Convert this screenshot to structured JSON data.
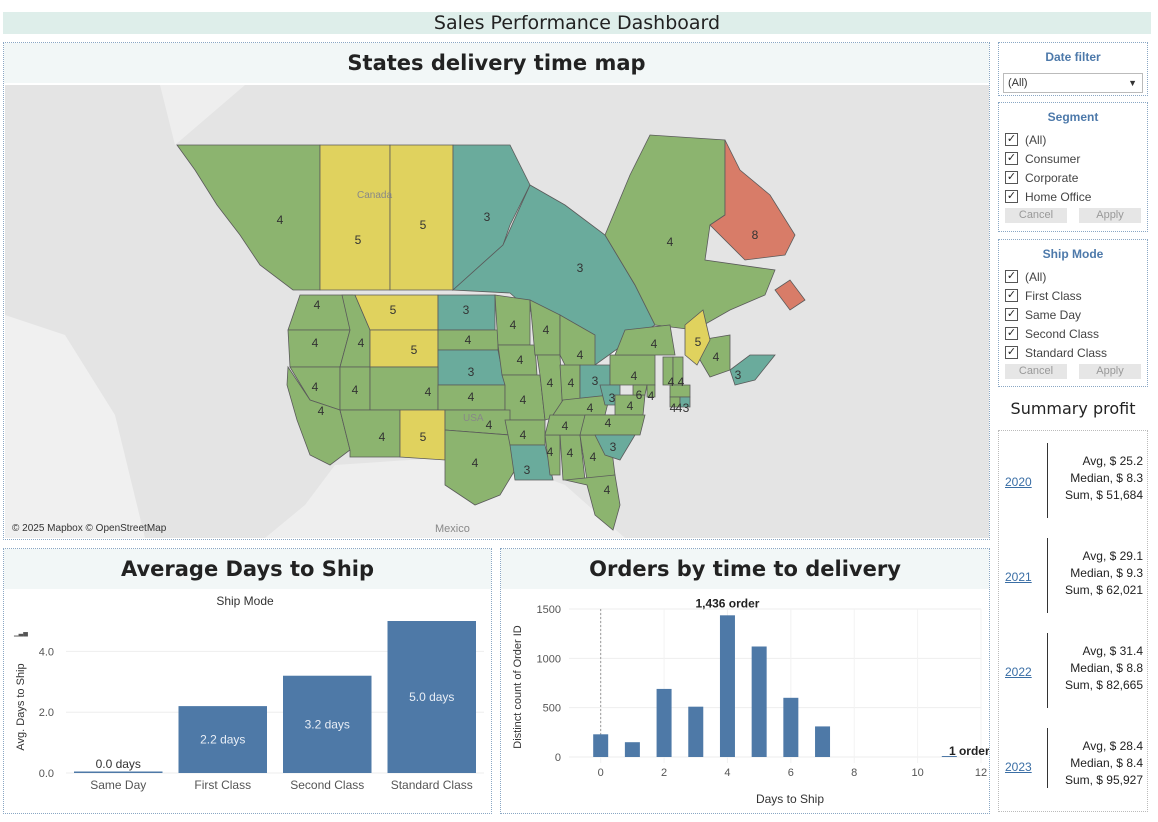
{
  "dashboard": {
    "title": "Sales Performance Dashboard"
  },
  "map": {
    "title": "States delivery time map",
    "credit": "© 2025 Mapbox © OpenStreetMap",
    "labels": {
      "canada": "Canada",
      "usa": "USA",
      "mexico": "Mexico"
    },
    "colors": {
      "v3": "#6aab9c",
      "v4": "#8cb46f",
      "v5": "#e0d25e",
      "v6": "#8cb46f",
      "v8": "#d87c68"
    },
    "regions": [
      {
        "name": "British Columbia",
        "days": "4"
      },
      {
        "name": "Alberta",
        "days": "5"
      },
      {
        "name": "Saskatchewan",
        "days": "5"
      },
      {
        "name": "Manitoba",
        "days": "3"
      },
      {
        "name": "Ontario",
        "days": "3"
      },
      {
        "name": "Quebec",
        "days": "4"
      },
      {
        "name": "Newfoundland and Labrador",
        "days": "8"
      },
      {
        "name": "New Brunswick",
        "days": "4"
      },
      {
        "name": "Nova Scotia",
        "days": "3"
      },
      {
        "name": "Washington",
        "days": "4"
      },
      {
        "name": "Oregon",
        "days": "4"
      },
      {
        "name": "Idaho",
        "days": "4"
      },
      {
        "name": "Montana",
        "days": "5"
      },
      {
        "name": "Wyoming",
        "days": "5"
      },
      {
        "name": "North Dakota",
        "days": "3"
      },
      {
        "name": "South Dakota",
        "days": "4"
      },
      {
        "name": "Nebraska",
        "days": "3"
      },
      {
        "name": "Minnesota",
        "days": "4"
      },
      {
        "name": "Iowa",
        "days": "4"
      },
      {
        "name": "Wisconsin",
        "days": "4"
      },
      {
        "name": "Michigan",
        "days": "4"
      },
      {
        "name": "Nevada",
        "days": "4"
      },
      {
        "name": "Utah",
        "days": "4"
      },
      {
        "name": "Colorado",
        "days": "4"
      },
      {
        "name": "Kansas",
        "days": "4"
      },
      {
        "name": "Missouri",
        "days": "4"
      },
      {
        "name": "Illinois",
        "days": "4"
      },
      {
        "name": "Indiana",
        "days": "4"
      },
      {
        "name": "Ohio",
        "days": "3"
      },
      {
        "name": "Pennsylvania",
        "days": "4"
      },
      {
        "name": "New York",
        "days": "4"
      },
      {
        "name": "Maine",
        "days": "5"
      },
      {
        "name": "California",
        "days": "4"
      },
      {
        "name": "Arizona",
        "days": "4"
      },
      {
        "name": "New Mexico",
        "days": "5"
      },
      {
        "name": "Oklahoma",
        "days": "4"
      },
      {
        "name": "Texas",
        "days": "4"
      },
      {
        "name": "Arkansas",
        "days": "4"
      },
      {
        "name": "Louisiana",
        "days": "3"
      },
      {
        "name": "Mississippi",
        "days": "4"
      },
      {
        "name": "Alabama",
        "days": "4"
      },
      {
        "name": "Georgia",
        "days": "4"
      },
      {
        "name": "Florida",
        "days": "4"
      },
      {
        "name": "Tennessee",
        "days": "4"
      },
      {
        "name": "Kentucky",
        "days": "4"
      },
      {
        "name": "West Virginia",
        "days": "3"
      },
      {
        "name": "Virginia",
        "days": "4"
      },
      {
        "name": "North Carolina",
        "days": "4"
      },
      {
        "name": "South Carolina",
        "days": "3"
      },
      {
        "name": "Maryland",
        "days": "6"
      },
      {
        "name": "Delaware",
        "days": "4"
      },
      {
        "name": "Vermont",
        "days": "4"
      },
      {
        "name": "New Hampshire",
        "days": "4"
      },
      {
        "name": "Massachusetts",
        "days": "4"
      },
      {
        "name": "Connecticut",
        "days": "4"
      },
      {
        "name": "Rhode Island",
        "days": "3"
      }
    ]
  },
  "filters": {
    "date": {
      "title": "Date filter",
      "selected": "(All)"
    },
    "segment": {
      "title": "Segment",
      "options": [
        "(All)",
        "Consumer",
        "Corporate",
        "Home Office"
      ],
      "cancel": "Cancel",
      "apply": "Apply"
    },
    "ship_mode": {
      "title": "Ship Mode",
      "options": [
        "(All)",
        "First Class",
        "Same Day",
        "Second Class",
        "Standard Class"
      ],
      "cancel": "Cancel",
      "apply": "Apply"
    }
  },
  "summary": {
    "title": "Summary profit",
    "years": [
      {
        "year": "2020",
        "avg": "Avg, $ 25.2",
        "median": "Median, $ 8.3",
        "sum": "Sum, $ 51,684"
      },
      {
        "year": "2021",
        "avg": "Avg, $ 29.1",
        "median": "Median, $ 9.3",
        "sum": "Sum, $ 62,021"
      },
      {
        "year": "2022",
        "avg": "Avg, $ 31.4",
        "median": "Median, $ 8.8",
        "sum": "Sum, $ 82,665"
      },
      {
        "year": "2023",
        "avg": "Avg, $ 28.4",
        "median": "Median, $ 8.4",
        "sum": "Sum, $ 95,927"
      }
    ]
  },
  "avg_days": {
    "title": "Average Days to Ship",
    "chart_data": {
      "type": "bar",
      "title": "Ship Mode",
      "ylabel": "Avg. Days to Ship",
      "categories": [
        "Same Day",
        "First Class",
        "Second Class",
        "Standard Class"
      ],
      "values": [
        0.0,
        2.2,
        3.2,
        5.0
      ],
      "data_labels": [
        "0.0 days",
        "2.2 days",
        "3.2 days",
        "5.0 days"
      ],
      "yticks": [
        "0.0",
        "2.0",
        "4.0"
      ],
      "ylim": [
        0,
        5.0
      ],
      "color": "#4e79a7"
    }
  },
  "orders": {
    "title": "Orders by time to delivery",
    "chart_data": {
      "type": "bar",
      "xlabel": "Days to Ship",
      "ylabel": "Distinct count of Order ID",
      "x": [
        0,
        1,
        2,
        3,
        4,
        5,
        6,
        7,
        11
      ],
      "values": [
        230,
        150,
        690,
        510,
        1436,
        1120,
        600,
        310,
        1
      ],
      "annotations": [
        {
          "x": 4,
          "text": "1,436 order"
        },
        {
          "x": 11,
          "text": "1 order"
        }
      ],
      "xticks": [
        "0",
        "2",
        "4",
        "6",
        "8",
        "10",
        "12"
      ],
      "yticks": [
        "0",
        "500",
        "1000",
        "1500"
      ],
      "xlim": [
        -1,
        12
      ],
      "ylim": [
        0,
        1500
      ],
      "color": "#4e79a7"
    }
  }
}
